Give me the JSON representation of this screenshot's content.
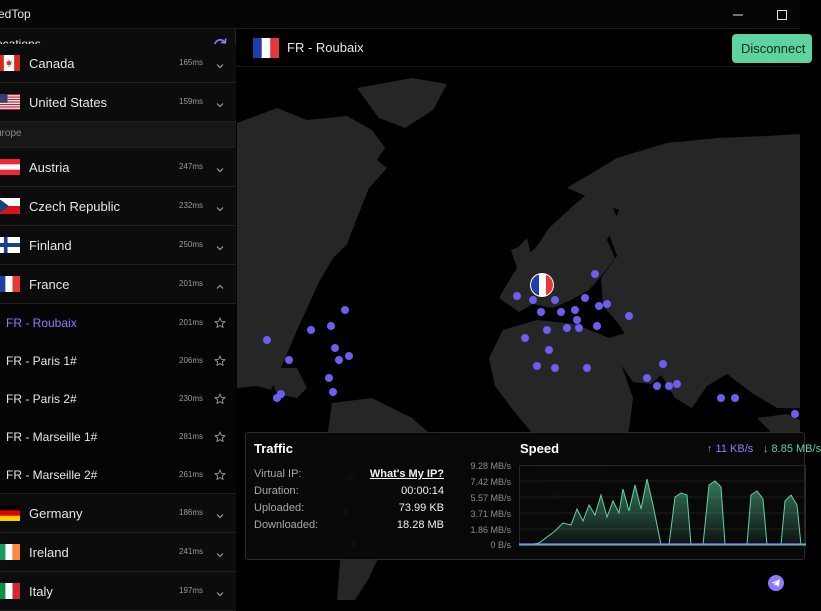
{
  "app": {
    "title": "edTop"
  },
  "sidebar": {
    "title": "ocations",
    "refresh_icon": "refresh-icon",
    "rows": [
      {
        "kind": "country",
        "name": "Canada",
        "ping": "165ms",
        "flag": "canada",
        "expanded": false
      },
      {
        "kind": "country",
        "name": "United States",
        "ping": "159ms",
        "flag": "usa",
        "expanded": false
      },
      {
        "kind": "group",
        "name": "urope"
      },
      {
        "kind": "country",
        "name": "Austria",
        "ping": "247ms",
        "flag": "austria",
        "expanded": false
      },
      {
        "kind": "country",
        "name": "Czech Republic",
        "ping": "232ms",
        "flag": "czech",
        "expanded": false
      },
      {
        "kind": "country",
        "name": "Finland",
        "ping": "250ms",
        "flag": "finland",
        "expanded": false
      },
      {
        "kind": "country",
        "name": "France",
        "ping": "201ms",
        "flag": "france",
        "expanded": true
      },
      {
        "kind": "server",
        "name": "FR - Roubaix",
        "ping": "201ms",
        "active": true
      },
      {
        "kind": "server",
        "name": "FR - Paris 1#",
        "ping": "206ms"
      },
      {
        "kind": "server",
        "name": "FR - Paris 2#",
        "ping": "230ms"
      },
      {
        "kind": "server",
        "name": "FR - Marseille 1#",
        "ping": "281ms"
      },
      {
        "kind": "server",
        "name": "FR - Marseille 2#",
        "ping": "261ms",
        "last": true
      },
      {
        "kind": "country",
        "name": "Germany",
        "ping": "186ms",
        "flag": "germany",
        "expanded": false
      },
      {
        "kind": "country",
        "name": "Ireland",
        "ping": "241ms",
        "flag": "ireland",
        "expanded": false
      },
      {
        "kind": "country",
        "name": "Italy",
        "ping": "197ms",
        "flag": "italy",
        "expanded": false
      }
    ]
  },
  "main": {
    "selected_server": "FR - Roubaix",
    "selected_flag": "france",
    "disconnect_label": "Disconnect"
  },
  "stats": {
    "traffic_title": "Traffic",
    "rows": [
      {
        "label": "Virtual IP:",
        "value": "What's My IP?",
        "link": true
      },
      {
        "label": "Duration:",
        "value": "00:00:14"
      },
      {
        "label": "Uploaded:",
        "value": "73.99 KB"
      },
      {
        "label": "Downloaded:",
        "value": "18.28 MB"
      }
    ],
    "speed_title": "Speed",
    "up_speed": "↑ 11 KB/s",
    "down_speed": "↓ 8.85 MB/s",
    "axis_labels": [
      "9.28 MB/s",
      "7.42 MB/s",
      "5.57 MB/s",
      "3.71 MB/s",
      "1.86 MB/s",
      "0 B/s"
    ]
  },
  "colors": {
    "accent": "#8a7cff",
    "connected": "#5ed3a0",
    "land": "#262626",
    "server_dot": "#6b5ff0"
  }
}
